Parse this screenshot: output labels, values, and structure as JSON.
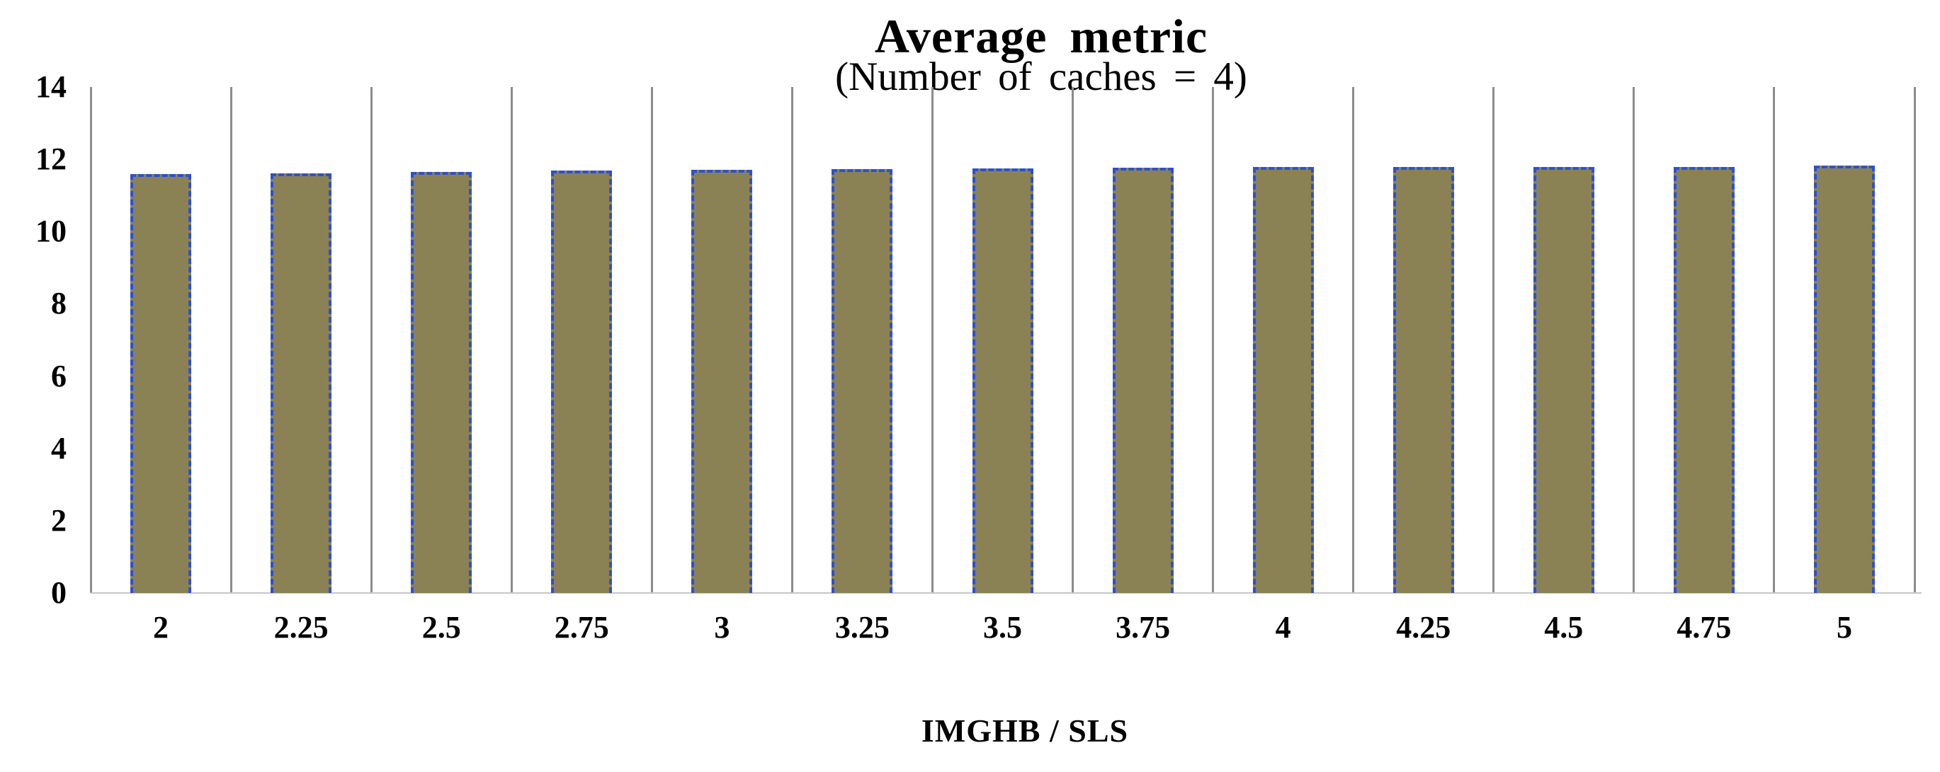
{
  "chart_data": {
    "type": "bar",
    "title": "Average metric",
    "subtitle": "(Number of caches = 4)",
    "xlabel": "IMGHB / SLS",
    "ylabel": "",
    "categories": [
      "2",
      "2.25",
      "2.5",
      "2.75",
      "3",
      "3.25",
      "3.5",
      "3.75",
      "4",
      "4.25",
      "4.5",
      "4.75",
      "5"
    ],
    "values": [
      11.6,
      11.61,
      11.66,
      11.69,
      11.71,
      11.73,
      11.75,
      11.76,
      11.78,
      11.78,
      11.78,
      11.79,
      11.82
    ],
    "ylim": [
      0,
      14
    ],
    "yticks": [
      0,
      2,
      4,
      6,
      8,
      10,
      12,
      14
    ],
    "grid": {
      "vertical_category_separators": true,
      "horizontal_gridlines": false
    },
    "legend": {
      "visible": false
    },
    "bar_style": {
      "border": "dashed"
    },
    "colors": {
      "bar_fill": "#8a8254",
      "bar_border": "#2b50d4",
      "gridline": "#8c8c8c",
      "baseline": "#c6c6c6",
      "text": "#000000",
      "background": "#ffffff"
    }
  }
}
